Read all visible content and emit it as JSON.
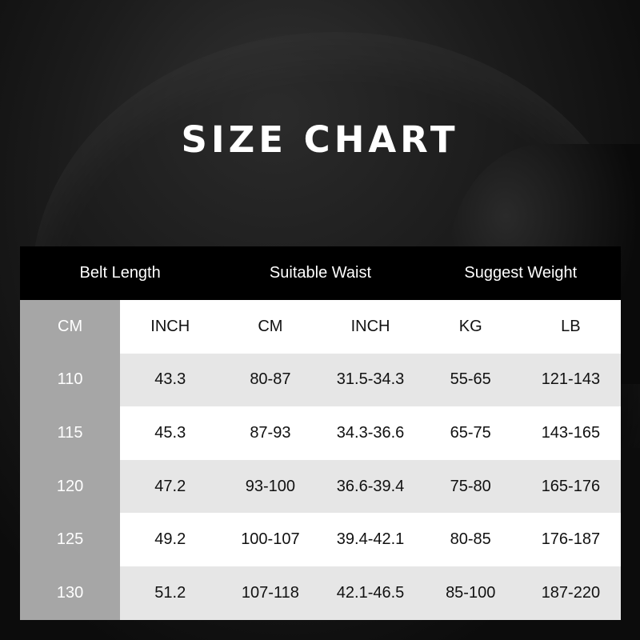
{
  "title": "SIZE CHART",
  "header_groups": [
    {
      "label": "Belt Length"
    },
    {
      "label": "Suitable Waist"
    },
    {
      "label": "Suggest Weight"
    }
  ],
  "units": [
    "CM",
    "INCH",
    "CM",
    "INCH",
    "KG",
    "LB"
  ],
  "rows": [
    [
      "110",
      "43.3",
      "80-87",
      "31.5-34.3",
      "55-65",
      "121-143"
    ],
    [
      "115",
      "45.3",
      "87-93",
      "34.3-36.6",
      "65-75",
      "143-165"
    ],
    [
      "120",
      "47.2",
      "93-100",
      "36.6-39.4",
      "75-80",
      "165-176"
    ],
    [
      "125",
      "49.2",
      "100-107",
      "39.4-42.1",
      "80-85",
      "176-187"
    ],
    [
      "130",
      "51.2",
      "107-118",
      "42.1-46.5",
      "85-100",
      "187-220"
    ]
  ]
}
